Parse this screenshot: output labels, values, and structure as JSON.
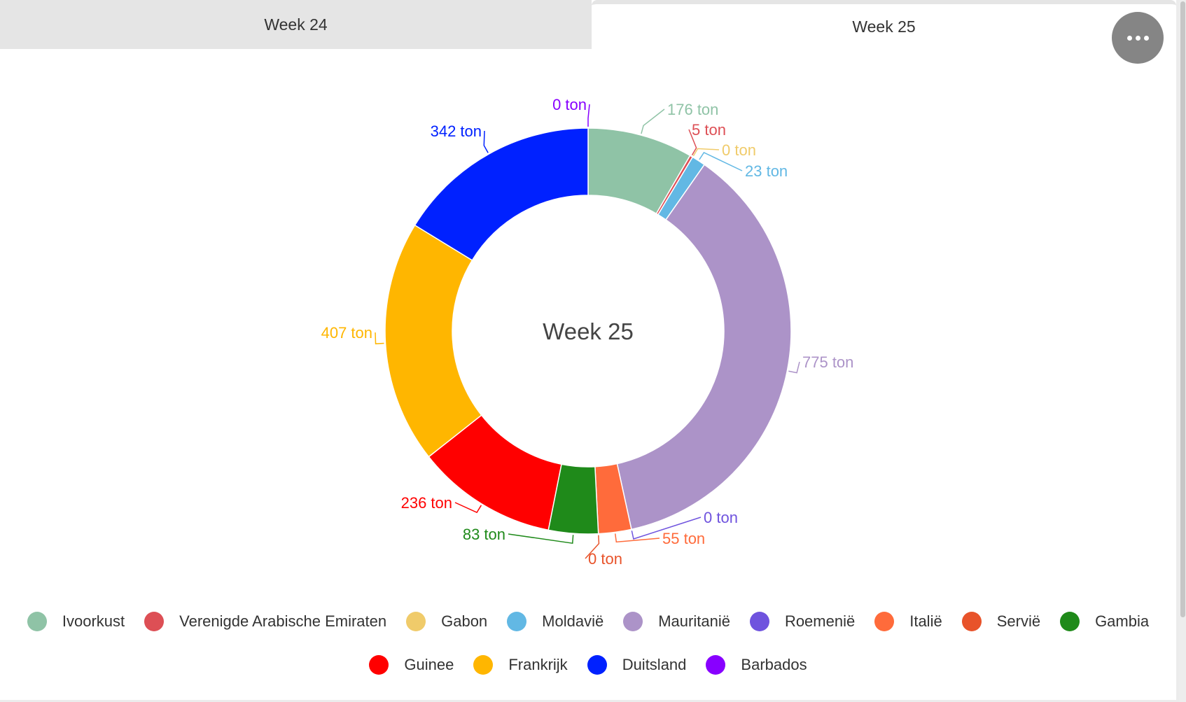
{
  "tabs": [
    {
      "label": "Week 24",
      "active": false
    },
    {
      "label": "Week 25",
      "active": true
    }
  ],
  "more_button": {
    "icon": "more-horizontal-icon"
  },
  "chart_data": {
    "type": "pie",
    "variant": "donut",
    "title": "Week 25",
    "unit": "ton",
    "categories": [
      "Ivoorkust",
      "Verenigde Arabische Emiraten",
      "Gabon",
      "Moldavië",
      "Mauritanië",
      "Roemenië",
      "Italië",
      "Servië",
      "Gambia",
      "Guinee",
      "Frankrijk",
      "Duitsland",
      "Barbados"
    ],
    "values": [
      176,
      5,
      0,
      23,
      775,
      0,
      55,
      0,
      83,
      236,
      407,
      342,
      0
    ],
    "labels": [
      "176 ton",
      "5 ton",
      "0 ton",
      "23 ton",
      "775 ton",
      "0 ton",
      "55 ton",
      "0 ton",
      "83 ton",
      "236 ton",
      "407 ton",
      "342 ton",
      "0 ton"
    ],
    "colors": [
      "#8fc3a6",
      "#dd4f55",
      "#f0cb6a",
      "#62b8e4",
      "#ac93c8",
      "#6f53de",
      "#ff6b3b",
      "#e8532a",
      "#1f8a1a",
      "#ff0000",
      "#ffb600",
      "#0021ff",
      "#8800ff"
    ],
    "legend_position": "bottom"
  }
}
